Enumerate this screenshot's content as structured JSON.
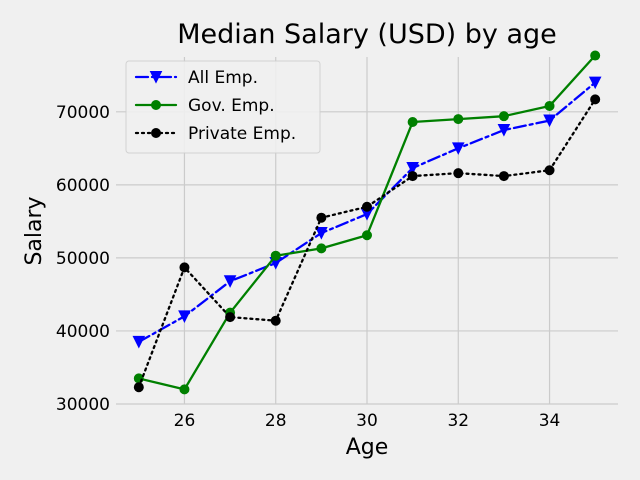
{
  "chart_data": {
    "type": "line",
    "title": "Median Salary (USD) by age",
    "xlabel": "Age",
    "ylabel": "Salary",
    "xlim": [
      24.5,
      35.5
    ],
    "ylim": [
      30000,
      77500
    ],
    "x_ticks": [
      26,
      28,
      30,
      32,
      34
    ],
    "y_ticks": [
      30000,
      40000,
      50000,
      60000,
      70000
    ],
    "grid": true,
    "legend_position": "top-left",
    "x": [
      25,
      26,
      27,
      28,
      29,
      30,
      31,
      32,
      33,
      34,
      35
    ],
    "series": [
      {
        "name": "All Emp.",
        "color": "#0000ff",
        "line_style": "dashdot",
        "marker": "triangle-down",
        "values": [
          38500,
          42000,
          46800,
          49300,
          53400,
          56000,
          62300,
          65000,
          67500,
          68800,
          74000
        ]
      },
      {
        "name": "Gov. Emp.",
        "color": "#008000",
        "line_style": "solid",
        "marker": "circle",
        "values": [
          33500,
          32000,
          42500,
          50300,
          51300,
          53100,
          68600,
          69000,
          69400,
          70800,
          77700
        ]
      },
      {
        "name": "Private Emp.",
        "color": "#000000",
        "line_style": "dotted",
        "marker": "circle",
        "values": [
          32300,
          48700,
          41900,
          41400,
          55500,
          57000,
          61200,
          61600,
          61200,
          62000,
          71700
        ]
      }
    ]
  }
}
